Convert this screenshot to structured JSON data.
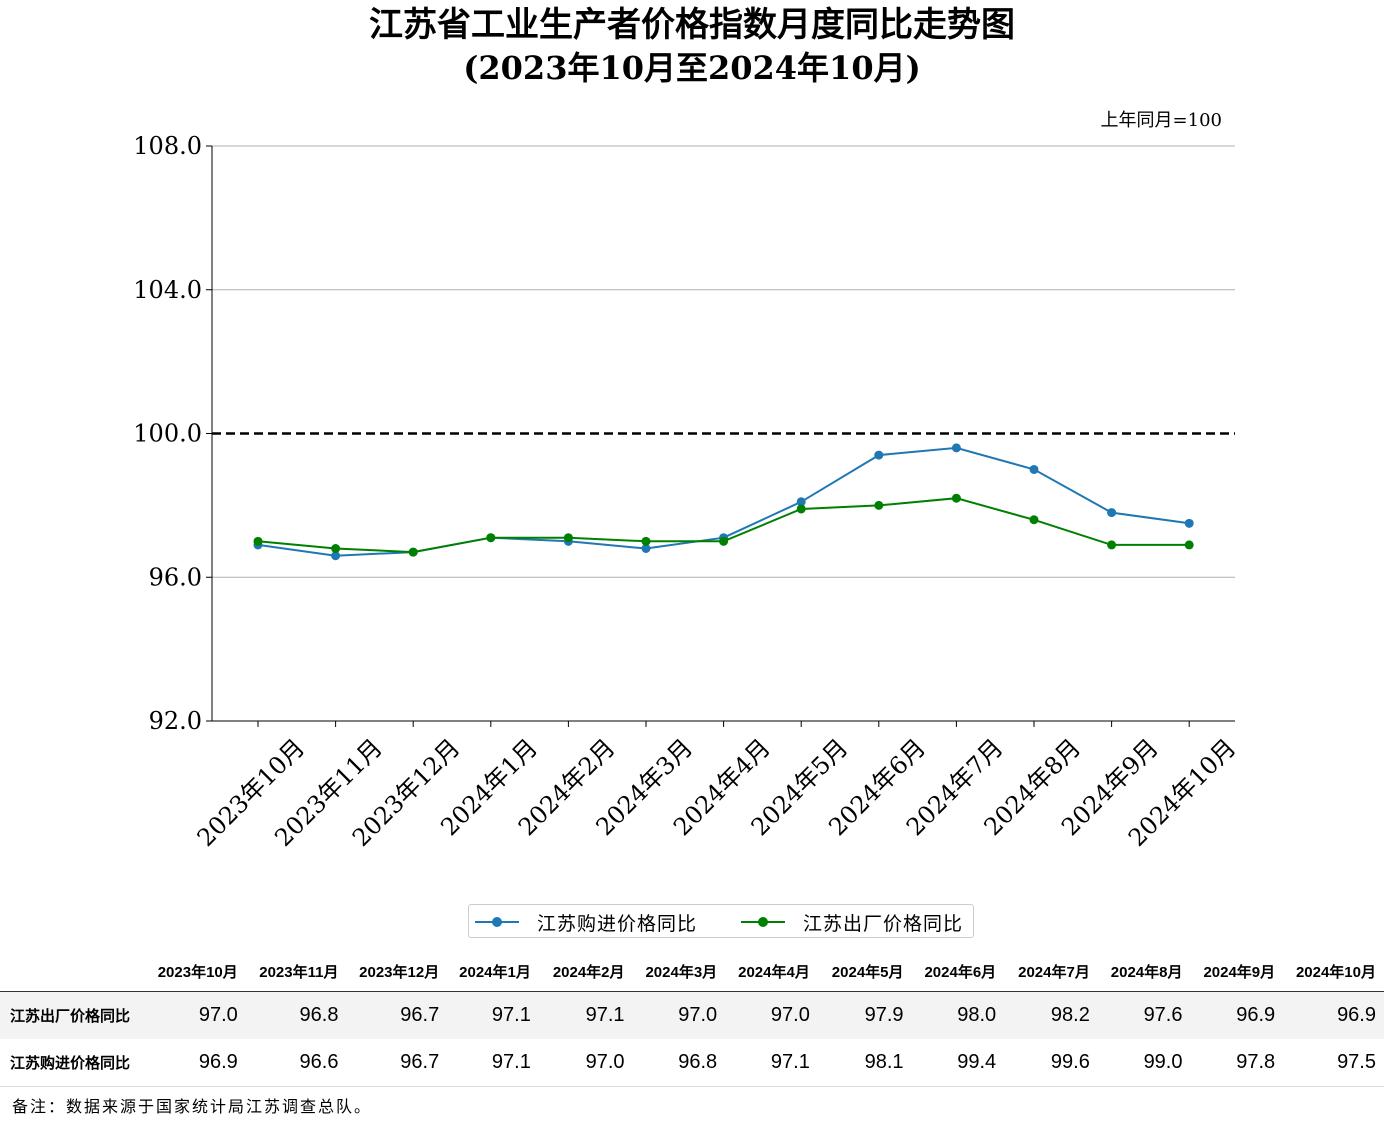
{
  "title": "江苏省工业生产者价格指数月度同比走势图",
  "subtitle": "(2023年10月至2024年10月)",
  "unit_note": "上年同月=100",
  "chart_data": {
    "type": "line",
    "categories": [
      "2023年10月",
      "2023年11月",
      "2023年12月",
      "2024年1月",
      "2024年2月",
      "2024年3月",
      "2024年4月",
      "2024年5月",
      "2024年6月",
      "2024年7月",
      "2024年8月",
      "2024年9月",
      "2024年10月"
    ],
    "series": [
      {
        "name": "江苏购进价格同比",
        "color": "#1f77b4",
        "values": [
          96.9,
          96.6,
          96.7,
          97.1,
          97.0,
          96.8,
          97.1,
          98.1,
          99.4,
          99.6,
          99.0,
          97.8,
          97.5
        ]
      },
      {
        "name": "江苏出厂价格同比",
        "color": "#008000",
        "values": [
          97.0,
          96.8,
          96.7,
          97.1,
          97.1,
          97.0,
          97.0,
          97.9,
          98.0,
          98.2,
          97.6,
          96.9,
          96.9
        ]
      }
    ],
    "ylim": [
      92.0,
      108.0
    ],
    "yticks": [
      "92.0",
      "96.0",
      "100.0",
      "104.0",
      "108.0"
    ],
    "reference_line": 100.0,
    "grid": true,
    "legend_position": "bottom-center"
  },
  "legend": [
    {
      "label": "江苏购进价格同比",
      "color": "#1f77b4"
    },
    {
      "label": "江苏出厂价格同比",
      "color": "#008000"
    }
  ],
  "table": {
    "columns": [
      "2023年10月",
      "2023年11月",
      "2023年12月",
      "2024年1月",
      "2024年2月",
      "2024年3月",
      "2024年4月",
      "2024年5月",
      "2024年6月",
      "2024年7月",
      "2024年8月",
      "2024年9月",
      "2024年10月"
    ],
    "rows": [
      {
        "label": "江苏出厂价格同比",
        "values": [
          "97.0",
          "96.8",
          "96.7",
          "97.1",
          "97.1",
          "97.0",
          "97.0",
          "97.9",
          "98.0",
          "98.2",
          "97.6",
          "96.9",
          "96.9"
        ]
      },
      {
        "label": "江苏购进价格同比",
        "values": [
          "96.9",
          "96.6",
          "96.7",
          "97.1",
          "97.0",
          "96.8",
          "97.1",
          "98.1",
          "99.4",
          "99.6",
          "99.0",
          "97.8",
          "97.5"
        ]
      }
    ]
  },
  "note": "备注：数据来源于国家统计局江苏调查总队。"
}
